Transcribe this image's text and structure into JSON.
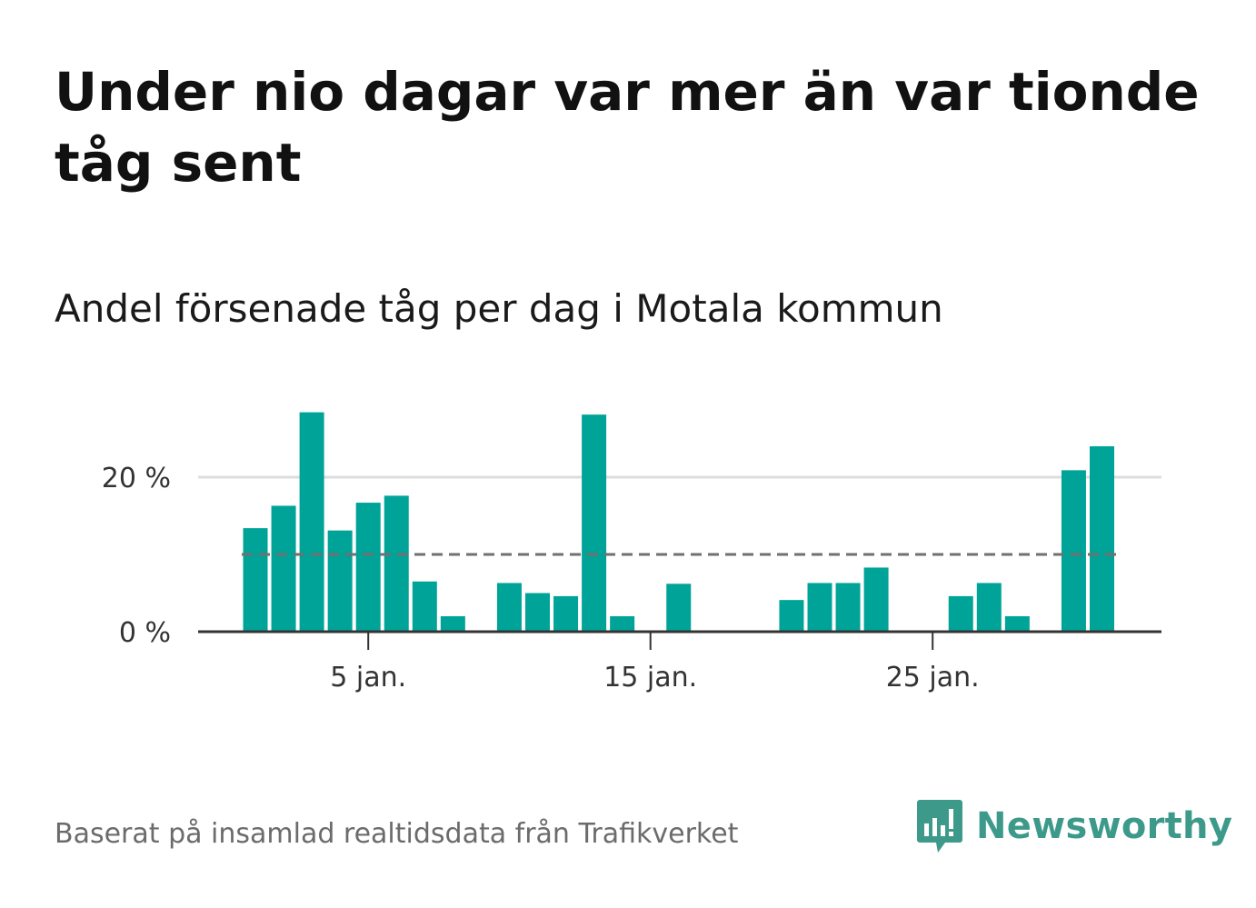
{
  "chart_data": {
    "type": "bar",
    "title": "Under nio dagar var mer än var tionde tåg sent",
    "subtitle": "Andel försenade tåg per dag i Motala kommun",
    "x": [
      1,
      2,
      3,
      4,
      5,
      6,
      7,
      8,
      9,
      10,
      11,
      12,
      13,
      14,
      15,
      16,
      17,
      18,
      19,
      20,
      21,
      22,
      23,
      24,
      25,
      26,
      27,
      28,
      29,
      30,
      31
    ],
    "values": [
      13.4,
      16.3,
      28.4,
      13.1,
      16.7,
      17.6,
      6.5,
      2.0,
      null,
      6.3,
      5.0,
      4.6,
      28.1,
      2.0,
      null,
      6.2,
      null,
      null,
      null,
      4.1,
      6.3,
      6.3,
      8.3,
      null,
      null,
      4.6,
      6.3,
      2.0,
      null,
      20.9,
      24.0
    ],
    "x_ticks": [
      {
        "x": 5,
        "label": "5 jan."
      },
      {
        "x": 15,
        "label": "15 jan."
      },
      {
        "x": 25,
        "label": "25 jan."
      }
    ],
    "y_ticks": [
      {
        "value": 0,
        "label": "0 %"
      },
      {
        "value": 20,
        "label": "20 %"
      }
    ],
    "ylim": [
      0,
      30
    ],
    "reference_line": 10,
    "bar_color": "#00a398",
    "reference_color": "#707070",
    "grid": true,
    "source": "Baserat på insamlad realtidsdata från Trafikverket"
  },
  "brand": {
    "name": "Newsworthy",
    "color": "#3d9a8a",
    "icon": "bar-chart-speech-bubble-icon"
  }
}
